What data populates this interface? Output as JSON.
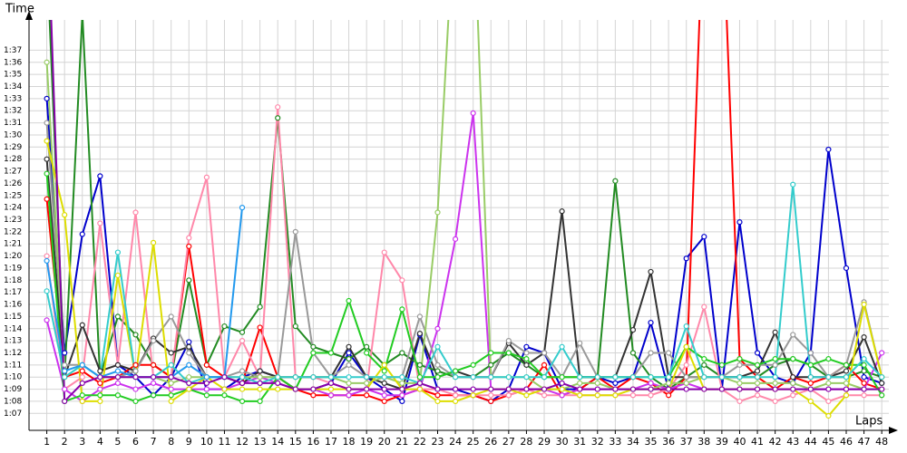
{
  "chart_data": {
    "type": "line",
    "y_label": "Time",
    "x_label": "Laps",
    "x": [
      1,
      2,
      3,
      4,
      5,
      6,
      7,
      8,
      9,
      10,
      11,
      12,
      13,
      14,
      15,
      16,
      17,
      18,
      19,
      20,
      21,
      22,
      23,
      24,
      25,
      26,
      27,
      28,
      29,
      30,
      31,
      32,
      33,
      34,
      35,
      36,
      37,
      38,
      39,
      40,
      41,
      42,
      43,
      44,
      45,
      46,
      47,
      48
    ],
    "xticks": [
      1,
      2,
      3,
      4,
      5,
      6,
      7,
      8,
      9,
      10,
      11,
      12,
      13,
      14,
      15,
      16,
      17,
      18,
      19,
      20,
      21,
      22,
      23,
      24,
      25,
      26,
      27,
      28,
      29,
      30,
      31,
      32,
      33,
      34,
      35,
      36,
      37,
      38,
      39,
      40,
      41,
      42,
      43,
      44,
      45,
      46,
      47,
      48
    ],
    "xlim": [
      0,
      48.4
    ],
    "ylim": [
      65.6,
      99.5
    ],
    "grid": true,
    "yticks": [
      {
        "value": 67,
        "label": "1:07"
      },
      {
        "value": 68,
        "label": "1:08"
      },
      {
        "value": 69,
        "label": "1:09"
      },
      {
        "value": 70,
        "label": "1:10"
      },
      {
        "value": 71,
        "label": "1:11"
      },
      {
        "value": 72,
        "label": "1:12"
      },
      {
        "value": 73,
        "label": "1:13"
      },
      {
        "value": 74,
        "label": "1:14"
      },
      {
        "value": 75,
        "label": "1:15"
      },
      {
        "value": 76,
        "label": "1:16"
      },
      {
        "value": 77,
        "label": "1:17"
      },
      {
        "value": 78,
        "label": "1:18"
      },
      {
        "value": 79,
        "label": "1:19"
      },
      {
        "value": 80,
        "label": "1:20"
      },
      {
        "value": 81,
        "label": "1:21"
      },
      {
        "value": 82,
        "label": "1:22"
      },
      {
        "value": 83,
        "label": "1:23"
      },
      {
        "value": 84,
        "label": "1:24"
      },
      {
        "value": 85,
        "label": "1:25"
      },
      {
        "value": 86,
        "label": "1:26"
      },
      {
        "value": 87,
        "label": "1:27"
      },
      {
        "value": 88,
        "label": "1:28"
      },
      {
        "value": 89,
        "label": "1:29"
      },
      {
        "value": 90,
        "label": "1:30"
      },
      {
        "value": 91,
        "label": "1:31"
      },
      {
        "value": 92,
        "label": "1:32"
      },
      {
        "value": 93,
        "label": "1:33"
      },
      {
        "value": 94,
        "label": "1:34"
      },
      {
        "value": 95,
        "label": "1:35"
      },
      {
        "value": 96,
        "label": "1:36"
      },
      {
        "value": 97,
        "label": "1:37"
      }
    ],
    "series": [
      {
        "color": "#0000cc",
        "values": [
          93,
          72,
          81.8,
          86.6,
          71,
          70,
          68.5,
          70,
          72.9,
          69,
          69,
          70,
          70.5,
          70,
          69,
          69,
          69.5,
          72,
          70,
          69,
          68,
          73.5,
          69,
          69,
          68.5,
          68,
          69,
          72.5,
          72,
          69,
          69,
          70,
          69.5,
          70,
          74.5,
          69,
          79.8,
          81.6,
          69,
          82.8,
          72,
          70,
          69.5,
          72,
          88.8,
          79,
          70,
          69.5
        ]
      },
      {
        "color": "#228b22",
        "values": [
          105,
          70,
          100,
          70,
          75,
          73.5,
          71,
          70,
          78,
          71,
          74.2,
          73.7,
          75.8,
          91.4,
          74.2,
          72.5,
          72,
          71.5,
          72.5,
          71,
          72,
          71,
          70.5,
          70,
          70,
          71,
          72,
          71,
          70,
          70,
          70,
          70,
          86.2,
          72,
          70,
          69,
          70,
          71,
          70,
          70,
          70,
          71,
          71.5,
          71,
          70,
          70,
          70.5,
          70
        ]
      },
      {
        "color": "#ff0000",
        "values": [
          84.7,
          70,
          70.5,
          69.5,
          70,
          71,
          71,
          70,
          80.8,
          71,
          70,
          69.5,
          74.1,
          70,
          69,
          68.5,
          68.5,
          68.5,
          68.5,
          68,
          68.5,
          69,
          68.5,
          68.5,
          68.5,
          68,
          68.5,
          69,
          71,
          68.5,
          69,
          70,
          69,
          70,
          69.5,
          68.5,
          70,
          110,
          110,
          71.5,
          70,
          69,
          70,
          69.5,
          70,
          71,
          69.5,
          69
        ]
      },
      {
        "color": "#ff88aa",
        "values": [
          80,
          69,
          70,
          82.7,
          71,
          83.6,
          70,
          70,
          81.5,
          86.5,
          70,
          73,
          70,
          92.3,
          70,
          70,
          69.5,
          69,
          69,
          80.3,
          78,
          69,
          69,
          68.5,
          68.5,
          68.5,
          68.5,
          69,
          68.5,
          68.5,
          68.5,
          68.5,
          68.5,
          68.5,
          68.5,
          69,
          71,
          75.8,
          69,
          68,
          68.5,
          68,
          68.5,
          69,
          68,
          68.5,
          68.5,
          68.5
        ]
      },
      {
        "color": "#cc33ee",
        "values": [
          74.7,
          69,
          68,
          69,
          69.5,
          69,
          69.5,
          69,
          69,
          69,
          69,
          69.5,
          70,
          69.5,
          69,
          69,
          68.5,
          68.5,
          69,
          68.5,
          68.5,
          69,
          74,
          81.4,
          91.8,
          69,
          69,
          69,
          69,
          68.5,
          69,
          69,
          69,
          69,
          69.5,
          69,
          69.5,
          69,
          69,
          69,
          69,
          69,
          69,
          69,
          69,
          69,
          69,
          72
        ]
      },
      {
        "color": "#333333",
        "values": [
          88,
          70,
          74.3,
          70.5,
          71,
          70.5,
          73.2,
          72,
          72.5,
          70,
          70,
          69.5,
          70.5,
          70,
          70,
          70,
          70,
          72.5,
          70,
          69.5,
          69,
          73.6,
          70,
          70.5,
          70,
          70,
          72.8,
          71,
          72,
          83.7,
          70,
          70,
          70,
          73.9,
          78.7,
          70,
          70,
          70,
          70,
          70,
          70.5,
          73.7,
          70,
          70,
          70,
          70.5,
          73.3,
          69.5
        ]
      },
      {
        "color": "#999999",
        "values": [
          91,
          71,
          71,
          70,
          70,
          70.5,
          73,
          75,
          72,
          70,
          70,
          70.5,
          70,
          70,
          82,
          72,
          70,
          71,
          70,
          70,
          70,
          75,
          71,
          70,
          70,
          70,
          73,
          72,
          72,
          70,
          72.8,
          70,
          70,
          70,
          72,
          72,
          70,
          70,
          70,
          71,
          71,
          71,
          73.5,
          72,
          70,
          71,
          76.2,
          70
        ]
      },
      {
        "color": "#99cc66",
        "values": [
          96,
          70,
          71,
          70,
          70,
          70,
          70,
          69.5,
          70,
          70,
          70,
          70,
          70,
          70,
          70,
          70,
          70,
          69.5,
          69.5,
          70,
          69.5,
          69.5,
          83.6,
          110,
          110,
          70,
          70,
          70,
          69,
          69,
          69.5,
          69.5,
          69,
          69,
          69,
          69.5,
          69.5,
          70,
          70,
          69.5,
          69.5,
          69.5,
          69.5,
          69,
          69.5,
          69.5,
          69,
          69
        ]
      },
      {
        "color": "#22cc22",
        "values": [
          86.8,
          68,
          68.5,
          68.5,
          68.5,
          68,
          68.5,
          68.5,
          69,
          68.5,
          68.5,
          68,
          68,
          70,
          69,
          72,
          72,
          76.3,
          72,
          70.5,
          75.6,
          70,
          70,
          70.5,
          71,
          72,
          72,
          71.5,
          70,
          70,
          70,
          70,
          70,
          70,
          70,
          70,
          72.5,
          71.5,
          71,
          71.5,
          71,
          71.5,
          71.5,
          71,
          71.5,
          71,
          71,
          68.5
        ]
      },
      {
        "color": "#dddd00",
        "values": [
          89.5,
          83.4,
          68,
          68,
          78.4,
          70,
          81.1,
          68,
          69,
          70,
          69,
          69,
          69,
          69,
          69,
          69,
          69,
          69,
          69,
          71,
          69,
          69,
          68,
          68,
          68.5,
          69,
          69,
          68.5,
          69,
          69,
          68.5,
          68.5,
          68.5,
          69,
          69,
          69,
          72.5,
          69,
          69,
          69,
          69,
          69,
          69,
          68,
          66.8,
          68.5,
          76,
          70
        ]
      },
      {
        "color": "#33cccc",
        "values": [
          77.1,
          70,
          71,
          70,
          80.3,
          70,
          70,
          71,
          69.5,
          70,
          70,
          70,
          69.5,
          70,
          70,
          70,
          70,
          70,
          70,
          70,
          70,
          69.5,
          72.5,
          70,
          70,
          70,
          70,
          70,
          70,
          72.5,
          70,
          70,
          70,
          70,
          70,
          70,
          74.2,
          70,
          70,
          70,
          70,
          70,
          85.9,
          70,
          70,
          70,
          71.5,
          70
        ]
      },
      {
        "color": "#2299ee",
        "values": [
          79.6,
          70.5,
          71,
          70,
          70.5,
          70,
          70,
          70,
          71,
          70,
          70,
          84,
          null,
          null,
          null,
          null,
          null,
          null,
          null,
          null,
          null,
          null,
          null,
          null,
          null,
          null,
          null,
          null,
          null,
          null,
          null,
          null,
          null,
          null,
          null,
          null,
          null,
          null,
          null,
          null,
          null,
          null,
          null,
          null,
          null,
          null,
          null,
          null
        ]
      },
      {
        "color": "#8800aa",
        "values": [
          110,
          68,
          69.5,
          70,
          70,
          70,
          70,
          70,
          69.5,
          69.5,
          70,
          69.5,
          69.5,
          69.5,
          69,
          69,
          69.5,
          69,
          69,
          69,
          69,
          69.5,
          69,
          69,
          69,
          69,
          69,
          69,
          69,
          69.5,
          69,
          69,
          69,
          69,
          69,
          69,
          69,
          69,
          69,
          69,
          69,
          69,
          69,
          69,
          69,
          69,
          69,
          69
        ]
      }
    ]
  }
}
